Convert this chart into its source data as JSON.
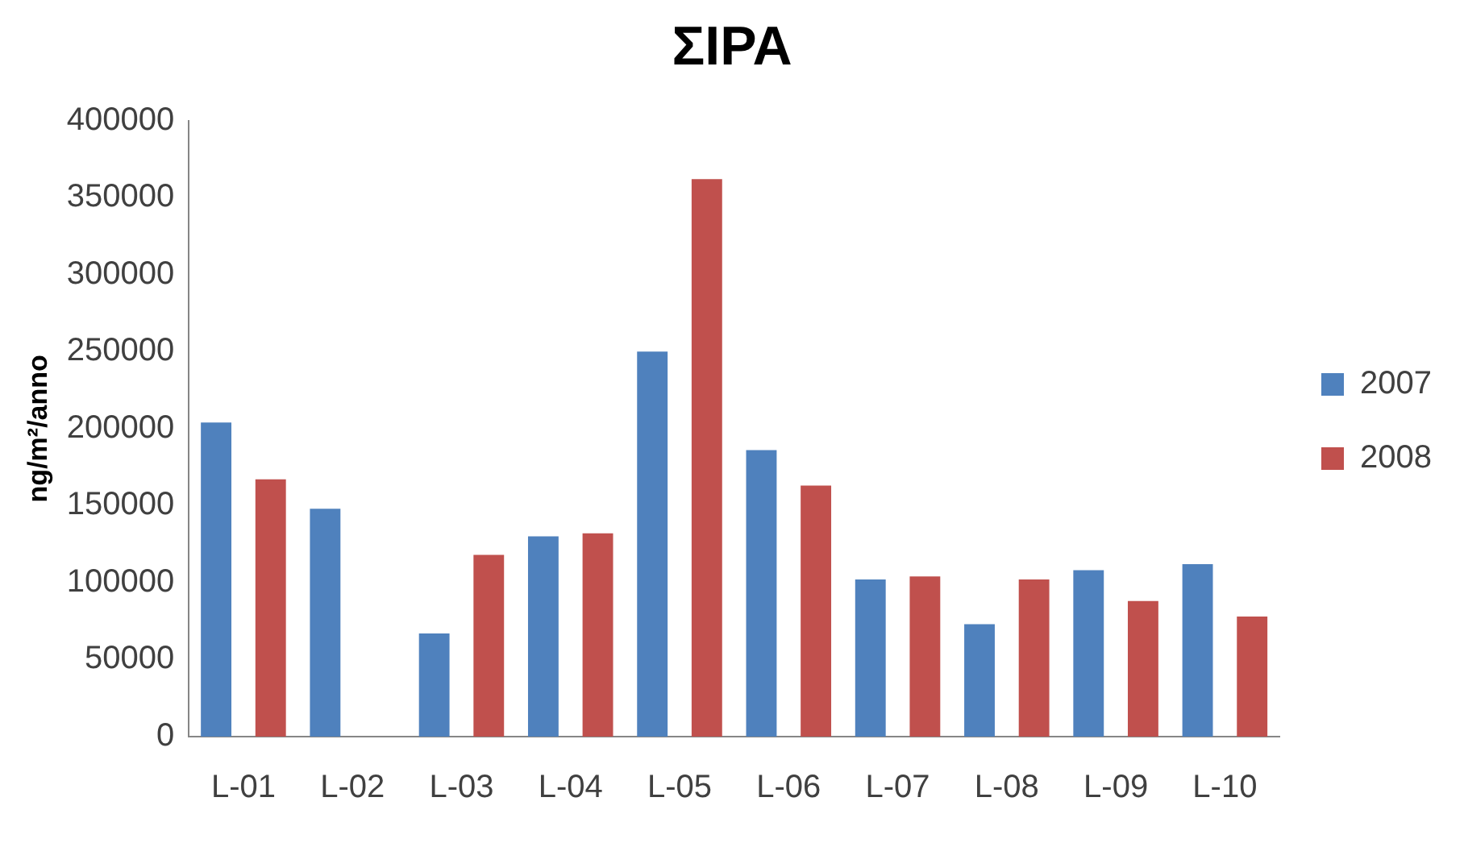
{
  "chart_data": {
    "type": "bar",
    "title": "ΣIPA",
    "ylabel": "ng/m²/anno",
    "categories": [
      "L-01",
      "L-02",
      "L-03",
      "L-04",
      "L-05",
      "L-06",
      "L-07",
      "L-08",
      "L-09",
      "L-10"
    ],
    "series": [
      {
        "name": "2007",
        "color": "#4f81bd",
        "values": [
          204000,
          148000,
          67000,
          130000,
          250000,
          186000,
          102000,
          73000,
          108000,
          112000
        ]
      },
      {
        "name": "2008",
        "color": "#c0504d",
        "values": [
          167000,
          null,
          118000,
          132000,
          362000,
          163000,
          104000,
          102000,
          88000,
          78000
        ]
      }
    ],
    "ylim": [
      0,
      400000
    ],
    "yticks": [
      0,
      50000,
      100000,
      150000,
      200000,
      250000,
      300000,
      350000,
      400000
    ],
    "grid": false,
    "legend": "right"
  }
}
